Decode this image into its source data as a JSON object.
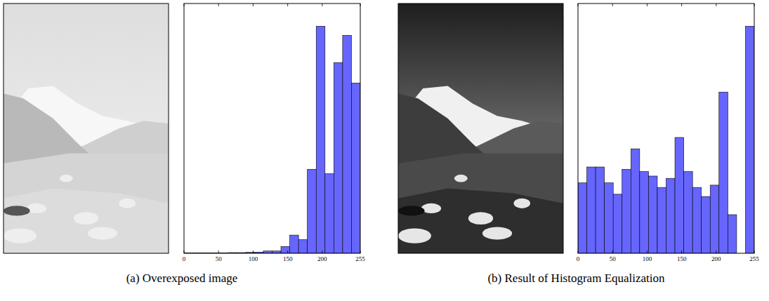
{
  "chart_data": [
    {
      "type": "histogram",
      "title": "(a) Overexposed image",
      "bins": [
        0,
        12.75,
        25.5,
        38.25,
        51,
        63.75,
        76.5,
        89.25,
        102,
        114.75,
        127.5,
        140.25,
        153,
        165.75,
        178.5,
        191.25,
        204,
        216.75,
        229.5,
        242.25,
        255
      ],
      "values": [
        0.2,
        0.2,
        0.2,
        0.2,
        0.2,
        0.3,
        0.3,
        0.4,
        0.5,
        1,
        1,
        3,
        8,
        6,
        37,
        100,
        35,
        84,
        96,
        75
      ],
      "color": "#6666ff",
      "xlim": [
        0,
        255
      ],
      "ylim": [
        0,
        110
      ],
      "xticks": [
        0,
        50,
        100,
        150,
        200,
        255
      ],
      "tick_labels": "x",
      "grid": false
    },
    {
      "type": "histogram",
      "title": "(b) Result of Histogram Equalization",
      "bins": [
        0,
        12.75,
        25.5,
        38.25,
        51,
        63.75,
        76.5,
        89.25,
        102,
        114.75,
        127.5,
        140.25,
        153,
        165.75,
        178.5,
        191.25,
        204,
        216.75,
        229.5,
        242.25,
        255
      ],
      "values": [
        31,
        38,
        38,
        31,
        26,
        37,
        46,
        36,
        34,
        29,
        33,
        51,
        36,
        29,
        25,
        30,
        71,
        17,
        0,
        100
      ],
      "color": "#6666ff",
      "xlim": [
        0,
        255
      ],
      "ylim": [
        0,
        110
      ],
      "xticks": [
        0,
        50,
        100,
        150,
        200,
        255
      ],
      "tick_labels": "x",
      "grid": false
    }
  ]
}
